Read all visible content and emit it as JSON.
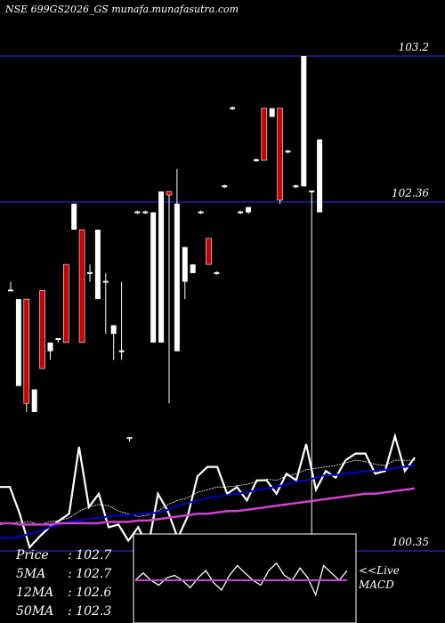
{
  "header": {
    "title": "NSE 699GS2026_GS munafa.munafasutra.com"
  },
  "stats": [
    {
      "label": "Price",
      "value": "102.7"
    },
    {
      "label": "5MA",
      "value": "102.7"
    },
    {
      "label": "12MA",
      "value": "102.6"
    },
    {
      "label": "50MA",
      "value": "102.3"
    }
  ],
  "live_label": {
    "line1": "<<Live",
    "line2": "MACD"
  },
  "colors": {
    "background": "#000000",
    "up_candle": "#ffffff",
    "down_candle": "#cc0000",
    "ref_line": "#1a1a7a",
    "price_line": "#ffffff",
    "ma_short": "#ffffff",
    "ma_mid": "#0000cc",
    "ma_long": "#cc44cc",
    "macd_panel_border": "#ffffff"
  },
  "chart_data": {
    "type": "candlestick",
    "price_levels": [
      {
        "label": "103.2",
        "value": 103.2
      },
      {
        "label": "102.36",
        "value": 102.36
      },
      {
        "label": "100.35",
        "value": 100.35
      }
    ],
    "ylim": [
      100.35,
      103.2
    ],
    "candles": [
      {
        "o": 101.85,
        "c": 101.85,
        "h": 101.9,
        "l": 101.85,
        "dir": "flat"
      },
      {
        "o": 101.3,
        "c": 101.8,
        "h": 101.8,
        "l": 101.3,
        "dir": "up"
      },
      {
        "o": 101.8,
        "c": 101.2,
        "h": 101.8,
        "l": 101.15,
        "dir": "down"
      },
      {
        "o": 101.15,
        "c": 101.28,
        "h": 101.28,
        "l": 101.15,
        "dir": "up"
      },
      {
        "o": 101.85,
        "c": 101.4,
        "h": 101.85,
        "l": 101.4,
        "dir": "down"
      },
      {
        "o": 101.5,
        "c": 101.55,
        "h": 101.55,
        "l": 101.45,
        "dir": "up"
      },
      {
        "o": 101.57,
        "c": 101.55,
        "h": 101.57,
        "l": 101.55,
        "dir": "flat"
      },
      {
        "o": 102.0,
        "c": 101.55,
        "h": 102.0,
        "l": 101.55,
        "dir": "down"
      },
      {
        "o": 102.35,
        "c": 102.2,
        "h": 102.35,
        "l": 102.2,
        "dir": "up"
      },
      {
        "o": 102.2,
        "c": 101.55,
        "h": 102.2,
        "l": 101.55,
        "dir": "down"
      },
      {
        "o": 101.95,
        "c": 101.95,
        "h": 102.0,
        "l": 101.9,
        "dir": "flat"
      },
      {
        "o": 101.8,
        "c": 102.2,
        "h": 102.2,
        "l": 101.8,
        "dir": "up"
      },
      {
        "o": 101.9,
        "c": 101.9,
        "h": 101.95,
        "l": 101.6,
        "dir": "flat"
      },
      {
        "o": 101.6,
        "c": 101.65,
        "h": 101.65,
        "l": 101.45,
        "dir": "up"
      },
      {
        "o": 101.5,
        "c": 101.5,
        "h": 101.9,
        "l": 101.45,
        "dir": "flat"
      },
      {
        "o": 101.0,
        "c": 101.0,
        "h": 101.0,
        "l": 100.98,
        "dir": "flat"
      },
      {
        "o": 102.3,
        "c": 102.3,
        "h": 102.31,
        "l": 102.29,
        "dir": "flat"
      },
      {
        "o": 102.3,
        "c": 102.3,
        "h": 102.31,
        "l": 102.29,
        "dir": "flat"
      },
      {
        "o": 101.55,
        "c": 102.3,
        "h": 102.3,
        "l": 101.55,
        "dir": "up"
      },
      {
        "o": 102.42,
        "c": 101.55,
        "h": 102.42,
        "l": 101.55,
        "dir": "up"
      },
      {
        "o": 102.42,
        "c": 102.4,
        "h": 102.42,
        "l": 101.2,
        "dir": "down"
      },
      {
        "o": 102.35,
        "c": 101.5,
        "h": 102.55,
        "l": 101.5,
        "dir": "up"
      },
      {
        "o": 101.9,
        "c": 102.1,
        "h": 102.1,
        "l": 101.8,
        "dir": "up"
      },
      {
        "o": 101.95,
        "c": 102.0,
        "h": 102.0,
        "l": 101.95,
        "dir": "up"
      },
      {
        "o": 102.3,
        "c": 102.3,
        "h": 102.31,
        "l": 102.29,
        "dir": "flat"
      },
      {
        "o": 102.15,
        "c": 102.0,
        "h": 102.15,
        "l": 102.0,
        "dir": "down"
      },
      {
        "o": 101.95,
        "c": 101.95,
        "h": 101.96,
        "l": 101.94,
        "dir": "flat"
      },
      {
        "o": 102.45,
        "c": 102.45,
        "h": 102.46,
        "l": 102.44,
        "dir": "flat"
      },
      {
        "o": 102.9,
        "c": 102.9,
        "h": 102.91,
        "l": 102.89,
        "dir": "flat"
      },
      {
        "o": 102.3,
        "c": 102.3,
        "h": 102.31,
        "l": 102.29,
        "dir": "flat"
      },
      {
        "o": 102.3,
        "c": 102.33,
        "h": 102.33,
        "l": 102.29,
        "dir": "up"
      },
      {
        "o": 102.6,
        "c": 102.6,
        "h": 102.61,
        "l": 102.59,
        "dir": "flat"
      },
      {
        "o": 102.9,
        "c": 102.6,
        "h": 102.9,
        "l": 102.6,
        "dir": "down"
      },
      {
        "o": 102.9,
        "c": 102.85,
        "h": 102.9,
        "l": 102.85,
        "dir": "up"
      },
      {
        "o": 102.9,
        "c": 102.37,
        "h": 102.9,
        "l": 102.35,
        "dir": "down"
      },
      {
        "o": 102.65,
        "c": 102.65,
        "h": 102.66,
        "l": 102.64,
        "dir": "flat"
      },
      {
        "o": 102.45,
        "c": 102.45,
        "h": 102.46,
        "l": 102.44,
        "dir": "flat"
      },
      {
        "o": 102.45,
        "c": 103.2,
        "h": 103.2,
        "l": 102.45,
        "dir": "up"
      },
      {
        "o": 102.42,
        "c": 102.42,
        "h": 102.42,
        "l": 100.2,
        "dir": "flat"
      },
      {
        "o": 102.3,
        "c": 102.72,
        "h": 102.72,
        "l": 102.3,
        "dir": "up"
      }
    ],
    "ma_panel": {
      "series": [
        {
          "role": "price",
          "color": "#ffffff",
          "values": [
            102.0,
            102.0,
            101.8,
            101.55,
            101.63,
            101.7,
            101.75,
            101.8,
            102.3,
            101.85,
            101.95,
            101.7,
            101.72,
            101.6,
            101.7,
            101.55,
            101.95,
            101.82,
            101.62,
            101.78,
            102.08,
            102.15,
            102.15,
            101.95,
            102.0,
            101.9,
            102.05,
            102.05,
            101.95,
            102.1,
            102.05,
            102.32,
            101.98,
            102.12,
            102.07,
            102.2,
            102.25,
            102.25,
            102.1,
            102.12,
            102.38,
            102.12,
            102.22
          ]
        },
        {
          "role": "ma_short",
          "color": "#ffffff",
          "values": [
            101.72,
            101.73,
            101.74,
            101.74,
            101.72,
            101.74,
            101.75,
            101.77,
            101.82,
            101.85,
            101.87,
            101.86,
            101.82,
            101.8,
            101.78,
            101.79,
            101.82,
            101.87,
            101.9,
            101.92,
            101.96,
            101.98,
            102.0,
            102.0,
            102.01,
            102.02,
            102.04,
            102.06,
            102.05,
            102.08,
            102.1,
            102.13,
            102.14,
            102.15,
            102.16,
            102.18,
            102.2,
            102.19,
            102.17,
            102.16,
            102.2,
            102.2,
            102.2
          ]
        },
        {
          "role": "ma_mid",
          "color": "#0000cc",
          "values": [
            101.62,
            101.62,
            101.63,
            101.65,
            101.67,
            101.7,
            101.72,
            101.74,
            101.75,
            101.76,
            101.77,
            101.78,
            101.79,
            101.79,
            101.8,
            101.8,
            101.81,
            101.83,
            101.86,
            101.88,
            101.9,
            101.92,
            101.93,
            101.94,
            101.95,
            101.96,
            101.98,
            101.99,
            102.0,
            102.02,
            102.04,
            102.05,
            102.07,
            102.09,
            102.09,
            102.1,
            102.11,
            102.12,
            102.12,
            102.13,
            102.14,
            102.15,
            102.16
          ]
        },
        {
          "role": "ma_long",
          "color": "#cc44cc",
          "values": [
            101.73,
            101.73,
            101.72,
            101.72,
            101.72,
            101.72,
            101.73,
            101.73,
            101.73,
            101.73,
            101.73,
            101.74,
            101.74,
            101.74,
            101.75,
            101.75,
            101.76,
            101.77,
            101.78,
            101.79,
            101.8,
            101.8,
            101.81,
            101.82,
            101.82,
            101.83,
            101.84,
            101.85,
            101.86,
            101.87,
            101.88,
            101.89,
            101.9,
            101.91,
            101.92,
            101.93,
            101.94,
            101.95,
            101.95,
            101.96,
            101.97,
            101.98,
            101.99
          ]
        }
      ]
    },
    "macd_panel": {
      "series": [
        {
          "role": "macd",
          "color": "#ffffff",
          "values": [
            0.0,
            0.15,
            0.0,
            -0.1,
            0.05,
            0.1,
            0.0,
            -0.15,
            0.05,
            0.2,
            -0.05,
            -0.2,
            0.1,
            0.3,
            0.15,
            0.0,
            -0.1,
            0.2,
            0.35,
            0.1,
            0.0,
            0.25,
            0.05,
            -0.3,
            0.3,
            0.15,
            0.0,
            0.2
          ]
        },
        {
          "role": "signal",
          "color": "#cc44cc",
          "values": [
            0.0,
            0.0,
            0.0,
            0.0,
            0.0,
            0.0,
            0.0,
            0.0,
            0.0,
            0.0,
            0.0,
            0.0,
            0.0,
            0.0,
            0.0,
            0.0,
            0.0,
            0.0,
            0.0,
            0.0,
            0.0,
            0.0,
            0.0,
            0.0,
            0.0,
            0.0,
            0.0,
            0.0
          ]
        }
      ]
    }
  }
}
